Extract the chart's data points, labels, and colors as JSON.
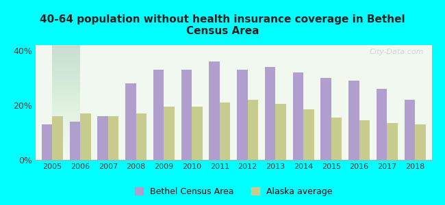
{
  "title": "40-64 population without health insurance coverage in Bethel\nCensus Area",
  "years": [
    2005,
    2006,
    2007,
    2008,
    2009,
    2010,
    2011,
    2012,
    2013,
    2014,
    2015,
    2016,
    2017,
    2018
  ],
  "bethel": [
    13,
    14,
    16,
    28,
    33,
    33,
    36,
    33,
    34,
    32,
    30,
    29,
    26,
    22
  ],
  "alaska": [
    16,
    17,
    16,
    17,
    19.5,
    19.5,
    21,
    22,
    20.5,
    18.5,
    15.5,
    14.5,
    13.5,
    13
  ],
  "bethel_color": "#b09fcc",
  "alaska_color": "#c8cc8f",
  "background_color": "#00ffff",
  "chart_bg_top": "#e8f8e8",
  "chart_bg_bottom": "#f8fff8",
  "ylim": [
    0,
    42
  ],
  "yticks": [
    0,
    20,
    40
  ],
  "ytick_labels": [
    "0%",
    "20%",
    "40%"
  ],
  "legend_bethel": "Bethel Census Area",
  "legend_alaska": "Alaska average",
  "watermark": "City-Data.com"
}
